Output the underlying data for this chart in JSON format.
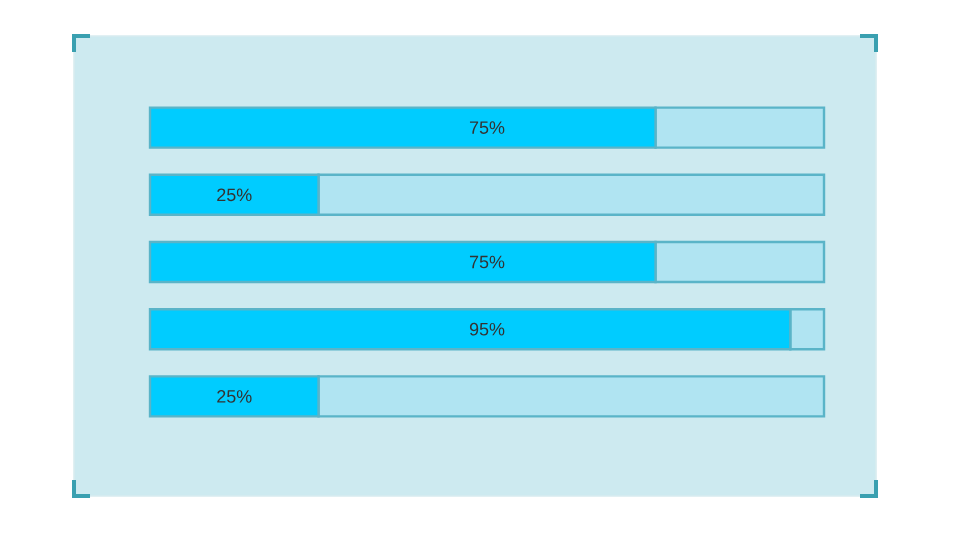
{
  "chart_data": {
    "type": "bar",
    "orientation": "horizontal",
    "stacked": true,
    "categories": [
      null,
      null,
      null,
      null,
      null
    ],
    "series": [
      {
        "color": "#00ccff",
        "values": [
          75,
          25,
          75,
          95,
          25
        ],
        "value_labels": [
          "75%",
          "25%",
          "75%",
          "95%",
          "25%"
        ]
      },
      {
        "color": "#b0e4f2",
        "values": [
          25,
          75,
          25,
          5,
          75
        ]
      }
    ],
    "xlim": [
      0,
      100
    ]
  }
}
